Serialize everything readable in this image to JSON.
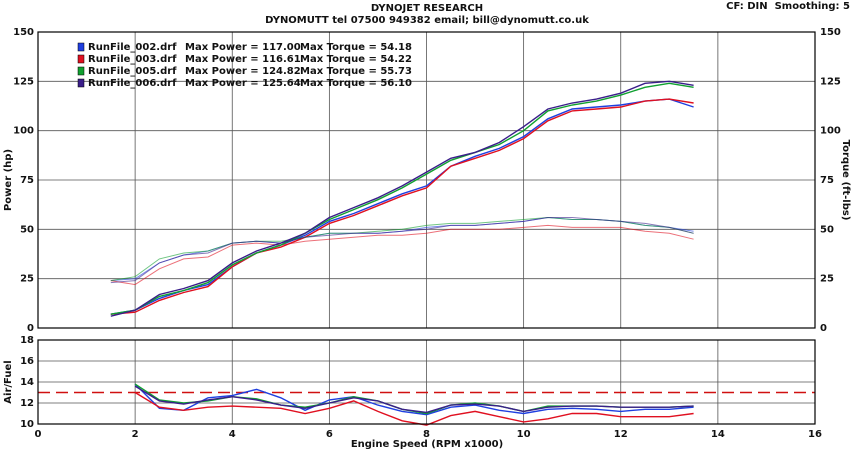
{
  "chart_data": [
    {
      "type": "line",
      "title": "DYNOJET RESEARCH",
      "subtitle": "DYNOMUTT tel 07500 949382 email; bill@dynomutt.co.uk",
      "annotation": "CF: DIN  Smoothing: 5",
      "ylabel": "Power (hp)",
      "y2label": "Torque (ft-lbs)",
      "x": [
        1.5,
        2,
        2.5,
        3,
        3.5,
        4,
        4.5,
        5,
        5.5,
        6,
        6.5,
        7,
        7.5,
        8,
        8.5,
        9,
        9.5,
        10,
        10.5,
        11,
        11.5,
        12,
        12.5,
        13,
        13.5
      ],
      "xlim": [
        0,
        16
      ],
      "xticks": [
        0,
        2,
        4,
        6,
        8,
        10,
        12,
        14,
        16
      ],
      "ylim": [
        0,
        150
      ],
      "yticks": [
        0,
        25,
        50,
        75,
        100,
        125,
        150
      ],
      "y2lim": [
        0,
        150
      ],
      "y2ticks": [
        0,
        25,
        50,
        75,
        100,
        125,
        150
      ],
      "grid": true,
      "series": [
        {
          "name": "RunFile_002.drf",
          "color": "#1f3fe0",
          "max_power_text": "Max Power = 117.00",
          "max_torque_text": "Max Torque = 54.18",
          "values": [
            7,
            9,
            15,
            19,
            22,
            31,
            38,
            42,
            47,
            54,
            58,
            63,
            68,
            72,
            82,
            87,
            91,
            97,
            106,
            111,
            112,
            113,
            115,
            116,
            112
          ],
          "torque": {
            "axis": "y2",
            "values": [
              24,
              25,
              33,
              37,
              39,
              43,
              44,
              43,
              46,
              48,
              48,
              48,
              49,
              51,
              52,
              52,
              53,
              54,
              56,
              55,
              55,
              54,
              52,
              51,
              49
            ]
          }
        },
        {
          "name": "RunFile_003.drf",
          "color": "#e01020",
          "max_power_text": "Max Power = 116.61",
          "max_torque_text": "Max Torque = 54.22",
          "values": [
            7,
            8,
            14,
            18,
            21,
            31,
            38,
            41,
            46,
            53,
            57,
            62,
            67,
            71,
            82,
            86,
            90,
            96,
            105,
            110,
            111,
            112,
            115,
            116,
            114
          ],
          "torque": {
            "axis": "y2",
            "values": [
              24,
              22,
              30,
              35,
              36,
              42,
              43,
              42,
              44,
              45,
              46,
              47,
              47,
              48,
              50,
              50,
              50,
              51,
              52,
              51,
              51,
              51,
              49,
              48,
              45
            ]
          }
        },
        {
          "name": "RunFile_005.drf",
          "color": "#10a030",
          "max_power_text": "Max Power = 124.82",
          "max_torque_text": "Max Torque = 55.73",
          "values": [
            7,
            9,
            16,
            19,
            23,
            32,
            38,
            42,
            48,
            55,
            60,
            65,
            71,
            78,
            85,
            89,
            93,
            100,
            110,
            113,
            115,
            118,
            122,
            124,
            122
          ],
          "torque": {
            "axis": "y2",
            "values": [
              24,
              26,
              35,
              38,
              39,
              43,
              44,
              44,
              46,
              48,
              48,
              49,
              50,
              52,
              53,
              53,
              54,
              55,
              56,
              55,
              55,
              54,
              52,
              51,
              48
            ]
          }
        },
        {
          "name": "RunFile_006.drf",
          "color": "#3a1e8a",
          "max_power_text": "Max Power = 125.64",
          "max_torque_text": "Max Torque = 56.10",
          "values": [
            6,
            9,
            17,
            20,
            24,
            33,
            39,
            43,
            48,
            56,
            61,
            66,
            72,
            79,
            86,
            89,
            94,
            102,
            111,
            114,
            116,
            119,
            124,
            125,
            123
          ],
          "torque": {
            "axis": "y2",
            "values": [
              23,
              24,
              33,
              37,
              38,
              43,
              44,
              43,
              46,
              47,
              48,
              48,
              49,
              50,
              52,
              52,
              53,
              54,
              56,
              56,
              55,
              54,
              53,
              51,
              48
            ]
          }
        }
      ]
    },
    {
      "type": "line",
      "ylabel": "Air/Fuel",
      "xlabel": "Engine Speed (RPM x1000)",
      "x": [
        1.5,
        2,
        2.5,
        3,
        3.5,
        4,
        4.5,
        5,
        5.5,
        6,
        6.5,
        7,
        7.5,
        8,
        8.5,
        9,
        9.5,
        10,
        10.5,
        11,
        11.5,
        12,
        12.5,
        13,
        13.5
      ],
      "xlim": [
        0,
        16
      ],
      "xticks": [
        0,
        2,
        4,
        6,
        8,
        10,
        12,
        14,
        16
      ],
      "ylim": [
        10,
        18
      ],
      "yticks": [
        10,
        12,
        14,
        16,
        18
      ],
      "reference": 13,
      "reference_color": "#d01010",
      "grid": true,
      "series": [
        {
          "color": "#1f3fe0",
          "values": [
            null,
            13.8,
            11.5,
            11.3,
            12.5,
            12.7,
            13.3,
            12.5,
            11.3,
            12.3,
            12.6,
            11.8,
            11.2,
            10.9,
            11.6,
            11.8,
            11.3,
            11,
            11.4,
            11.5,
            11.4,
            11.2,
            11.4,
            11.4,
            11.6
          ]
        },
        {
          "color": "#e01020",
          "values": [
            null,
            13,
            11.6,
            11.3,
            11.6,
            11.7,
            11.6,
            11.5,
            11,
            11.5,
            12.2,
            11.2,
            10.3,
            9.9,
            10.8,
            11.2,
            10.7,
            10.2,
            10.5,
            11,
            11,
            10.7,
            10.7,
            10.7,
            11
          ]
        },
        {
          "color": "#10a030",
          "values": [
            null,
            13.8,
            12.3,
            12,
            12.2,
            12.6,
            12.4,
            11.8,
            11.6,
            12,
            12.6,
            12.2,
            11.4,
            11,
            11.8,
            12,
            11.7,
            11.2,
            11.7,
            11.7,
            11.7,
            11.6,
            11.6,
            11.6,
            11.7
          ]
        },
        {
          "color": "#3a1e8a",
          "values": [
            null,
            13.6,
            12.2,
            11.9,
            12.3,
            12.6,
            12.3,
            11.8,
            11.5,
            12,
            12.5,
            12.2,
            11.4,
            11.1,
            11.8,
            11.9,
            11.7,
            11.2,
            11.6,
            11.7,
            11.7,
            11.6,
            11.6,
            11.6,
            11.7
          ]
        }
      ]
    }
  ]
}
